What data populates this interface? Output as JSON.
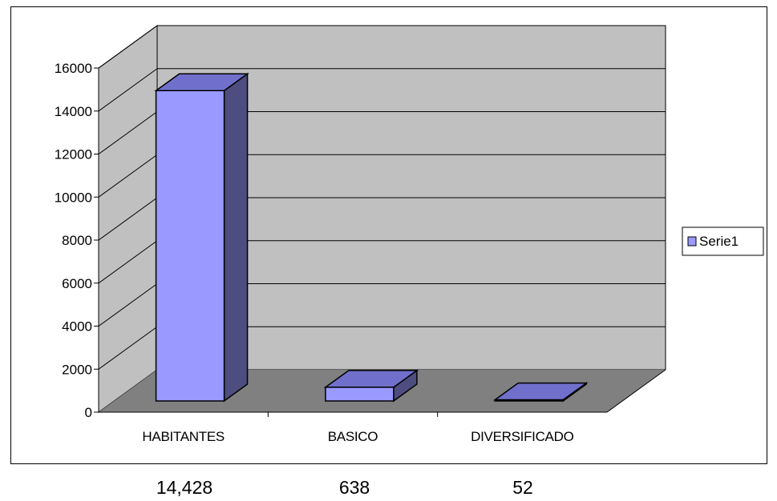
{
  "chart_data": {
    "type": "bar",
    "style": "3d-column",
    "categories": [
      "HABITANTES",
      "BASICO",
      "DIVERSIFICADO"
    ],
    "series": [
      {
        "name": "Serie1",
        "values": [
          14428,
          638,
          52
        ]
      }
    ],
    "ylim": [
      0,
      16000
    ],
    "y_ticks": [
      "0",
      "2000",
      "4000",
      "6000",
      "8000",
      "10000",
      "12000",
      "14000",
      "16000"
    ],
    "grid": true,
    "legend_position": "right",
    "colors": {
      "bar_front": "#9999ff",
      "bar_top": "#7070cc",
      "bar_side": "#4d4d80",
      "back_wall": "#c0c0c0",
      "side_wall": "#c0c0c0",
      "floor": "#808080"
    }
  },
  "value_labels": [
    "14,428",
    "638",
    "52"
  ]
}
